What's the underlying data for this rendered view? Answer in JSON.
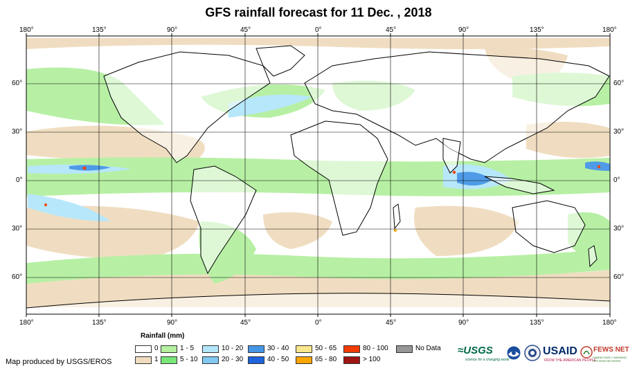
{
  "title": "GFS rainfall forecast for 11 Dec. , 2018",
  "axes": {
    "lon_ticks": [
      "180°",
      "135°",
      "90°",
      "45°",
      "0°",
      "45°",
      "90°",
      "135°",
      "180°"
    ],
    "lat_ticks": [
      "60°",
      "30°",
      "0°",
      "30°",
      "60°"
    ]
  },
  "legend": {
    "title": "Rainfall (mm)",
    "items": [
      {
        "label": "0",
        "color": "#ffffff"
      },
      {
        "label": "1",
        "color": "#f0dcbe"
      },
      {
        "label": "1 - 5",
        "color": "#b4f0a0"
      },
      {
        "label": "5 - 10",
        "color": "#78e678"
      },
      {
        "label": "10 - 20",
        "color": "#b4e6fa"
      },
      {
        "label": "20 - 30",
        "color": "#82c8f0"
      },
      {
        "label": "30 - 40",
        "color": "#4696e6"
      },
      {
        "label": "40 - 50",
        "color": "#1e64dc"
      },
      {
        "label": "50 - 65",
        "color": "#fae68c"
      },
      {
        "label": "65 - 80",
        "color": "#faa500"
      },
      {
        "label": "80 - 100",
        "color": "#f03c00"
      },
      {
        "label": "> 100",
        "color": "#a01414"
      },
      {
        "label": "No Data",
        "color": "#969696"
      }
    ]
  },
  "credit": "Map produced by USGS/EROS",
  "logos": {
    "usgs": "≈USGS",
    "usgs_tagline": "science for a changing world",
    "noaa": "noaa-emblem",
    "usaid": "USAID",
    "usaid_tagline": "FROM THE AMERICAN PEOPLE",
    "fews": "FEWS NET",
    "fews_tagline": "FAMINE EARLY WARNING SYSTEMS NETWORK"
  }
}
